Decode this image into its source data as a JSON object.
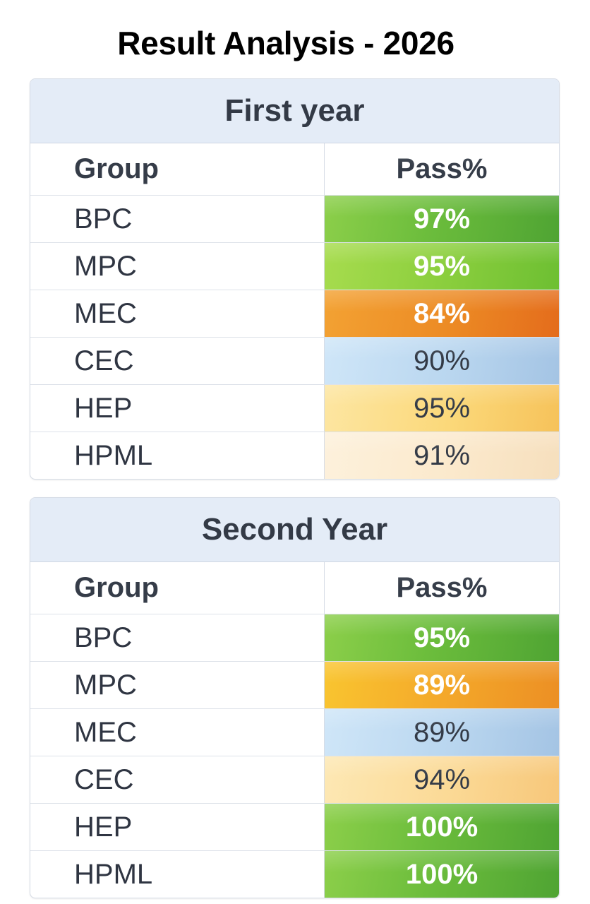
{
  "title": "Result Analysis - 2026",
  "tables": [
    {
      "title": "First year",
      "headers": {
        "group": "Group",
        "pass": "Pass%"
      },
      "rows": [
        {
          "group": "BPC",
          "pass": "97%",
          "color": "#6cbd3c"
        },
        {
          "group": "MPC",
          "pass": "95%",
          "color": "#8ccf3e"
        },
        {
          "group": "MEC",
          "pass": "84%",
          "color": "#ec8a24"
        },
        {
          "group": "CEC",
          "pass": "90%",
          "color": "#b9d6ef"
        },
        {
          "group": "HEP",
          "pass": "95%",
          "color": "#fbd879"
        },
        {
          "group": "HPML",
          "pass": "91%",
          "color": "#fbe9cc"
        }
      ]
    },
    {
      "title": "Second Year",
      "headers": {
        "group": "Group",
        "pass": "Pass%"
      },
      "rows": [
        {
          "group": "BPC",
          "pass": "95%",
          "color": "#6cbd3c"
        },
        {
          "group": "MPC",
          "pass": "89%",
          "color": "#f4a92a"
        },
        {
          "group": "MEC",
          "pass": "89%",
          "color": "#b9d6ef"
        },
        {
          "group": "CEC",
          "pass": "94%",
          "color": "#fbd995"
        },
        {
          "group": "HEP",
          "pass": "100%",
          "color": "#6cbd3c"
        },
        {
          "group": "HPML",
          "pass": "100%",
          "color": "#6cbd3c"
        }
      ]
    }
  ]
}
